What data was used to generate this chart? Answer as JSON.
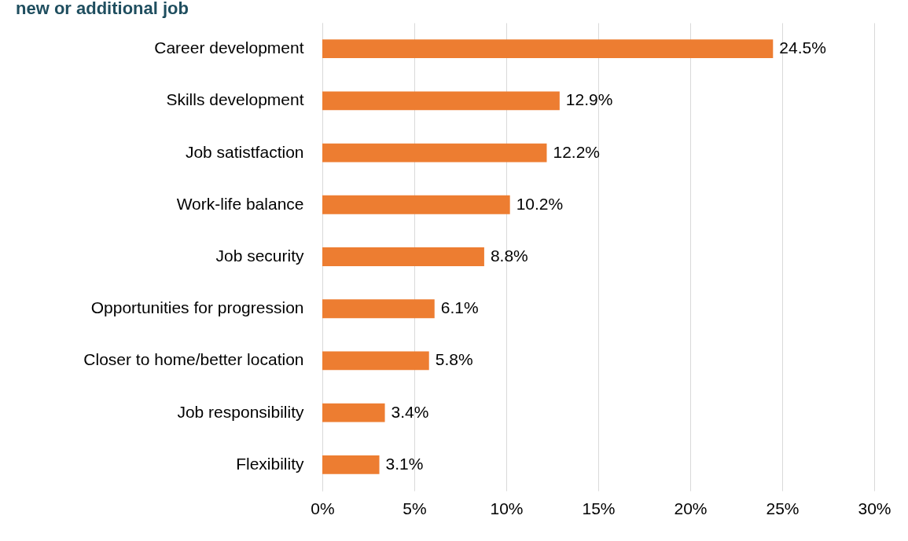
{
  "chart_data": {
    "type": "bar",
    "orientation": "horizontal",
    "title": "new or additional job",
    "categories": [
      "Career development",
      "Skills development",
      "Job satistfaction",
      "Work-life balance",
      "Job security",
      "Opportunities for progression",
      "Closer to home/better location",
      "Job responsibility",
      "Flexibility"
    ],
    "values": [
      24.5,
      12.9,
      12.2,
      10.2,
      8.8,
      6.1,
      5.8,
      3.4,
      3.1
    ],
    "value_labels": [
      "24.5%",
      "12.9%",
      "12.2%",
      "10.2%",
      "8.8%",
      "6.1%",
      "5.8%",
      "3.4%",
      "3.1%"
    ],
    "color": "#ed7d31",
    "xlim": [
      0,
      30
    ],
    "xticks": [
      {
        "value": 0,
        "label": "0%"
      },
      {
        "value": 5,
        "label": "5%"
      },
      {
        "value": 10,
        "label": "10%"
      },
      {
        "value": 15,
        "label": "15%"
      },
      {
        "value": 20,
        "label": "20%"
      },
      {
        "value": 25,
        "label": "25%"
      },
      {
        "value": 30,
        "label": "30%"
      }
    ],
    "grid": "x"
  }
}
